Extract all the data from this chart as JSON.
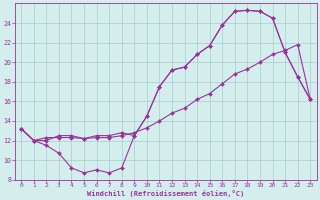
{
  "xlabel": "Windchill (Refroidissement éolien,°C)",
  "bg_color": "#d4eeee",
  "grid_color": "#aacccc",
  "line_color": "#993399",
  "xlim": [
    -0.5,
    23.5
  ],
  "ylim": [
    8,
    26
  ],
  "yticks": [
    8,
    10,
    12,
    14,
    16,
    18,
    20,
    22,
    24
  ],
  "xticks": [
    0,
    1,
    2,
    3,
    4,
    5,
    6,
    7,
    8,
    9,
    10,
    11,
    12,
    13,
    14,
    15,
    16,
    17,
    18,
    19,
    20,
    21,
    22,
    23
  ],
  "line1_x": [
    0,
    1,
    2,
    3,
    4,
    5,
    6,
    7,
    8,
    9,
    10,
    11,
    12,
    13,
    14,
    15,
    16,
    17,
    18,
    19,
    20,
    21,
    22,
    23
  ],
  "line1_y": [
    13.2,
    12.0,
    11.5,
    10.7,
    9.2,
    8.7,
    9.0,
    8.7,
    9.2,
    12.5,
    14.5,
    17.5,
    19.2,
    19.5,
    20.8,
    21.7,
    23.8,
    25.2,
    25.3,
    25.2,
    24.5,
    21.0,
    18.5,
    16.2
  ],
  "line2_x": [
    0,
    1,
    2,
    3,
    4,
    5,
    6,
    7,
    8,
    9,
    10,
    11,
    12,
    13,
    14,
    15,
    16,
    17,
    18,
    19,
    20,
    21,
    22,
    23
  ],
  "line2_y": [
    13.2,
    12.0,
    12.3,
    12.3,
    12.3,
    12.2,
    12.3,
    12.3,
    12.5,
    12.8,
    13.3,
    14.0,
    14.8,
    15.3,
    16.2,
    16.8,
    17.8,
    18.8,
    19.3,
    20.0,
    20.8,
    21.2,
    21.8,
    16.2
  ],
  "line3_x": [
    0,
    1,
    2,
    3,
    4,
    5,
    6,
    7,
    8,
    9,
    10,
    11,
    12,
    13,
    14,
    15,
    16,
    17,
    18,
    19,
    20,
    21,
    22,
    23
  ],
  "line3_y": [
    13.2,
    12.0,
    12.0,
    12.5,
    12.5,
    12.2,
    12.5,
    12.5,
    12.8,
    12.5,
    14.5,
    17.5,
    19.2,
    19.5,
    20.8,
    21.7,
    23.8,
    25.2,
    25.3,
    25.2,
    24.5,
    21.0,
    18.5,
    16.2
  ],
  "marker_size": 2.0,
  "linewidth": 0.8,
  "tick_fontsize": 4.5,
  "xlabel_fontsize": 5.0
}
